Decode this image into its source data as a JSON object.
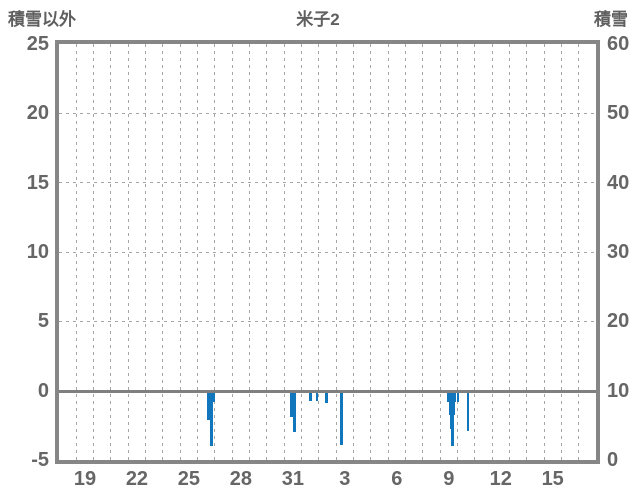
{
  "header": {
    "left_axis_title": "積雪以外",
    "title": "米子2",
    "right_axis_title": "積雪"
  },
  "colors": {
    "bar": "#1276bd",
    "frame": "#868686",
    "grid": "#a6a6a6",
    "zero_line": "#7f7f7f",
    "text": "#666666"
  },
  "chart_data": {
    "type": "bar",
    "title": "米子2",
    "left_axis": {
      "label": "積雪以外",
      "ticks": [
        25,
        20,
        15,
        10,
        5,
        0,
        "-5"
      ],
      "tick_values": [
        25,
        20,
        15,
        10,
        5,
        0,
        -5
      ],
      "range": [
        -5,
        25
      ]
    },
    "right_axis": {
      "label": "積雪",
      "ticks": [
        60,
        50,
        40,
        30,
        20,
        10,
        0
      ],
      "tick_values": [
        60,
        50,
        40,
        30,
        20,
        10,
        0
      ],
      "range": [
        0,
        60
      ]
    },
    "x_axis": {
      "tick_labels": [
        "19",
        "22",
        "25",
        "28",
        "31",
        "3",
        "6",
        "9",
        "12",
        "15"
      ],
      "tick_day_index": [
        1,
        4,
        7,
        10,
        13,
        16,
        19,
        22,
        25,
        28
      ],
      "days_total": 31,
      "first_day_label": "18",
      "grid": "daily dashed vertical lines; dashed horizontal lines at 5-unit steps; solid line at 0"
    },
    "hgrid_values": [
      20,
      15,
      10,
      5
    ],
    "zero_value": 0,
    "bars_note": "bars hang downward from the 0 line of the left axis; x is in days from the left plot edge (day 18 = 0), w is width in days, v is value on the left axis (estimated from pixels)",
    "bars": [
      {
        "x": 8.55,
        "w": 0.46,
        "v": -0.8
      },
      {
        "x": 8.55,
        "w": 0.34,
        "v": -2.1
      },
      {
        "x": 8.73,
        "w": 0.17,
        "v": -4.0
      },
      {
        "x": 13.35,
        "w": 0.34,
        "v": -1.9
      },
      {
        "x": 13.53,
        "w": 0.17,
        "v": -3.0
      },
      {
        "x": 14.44,
        "w": 0.17,
        "v": -0.75
      },
      {
        "x": 14.81,
        "w": 0.17,
        "v": -0.75
      },
      {
        "x": 15.38,
        "w": 0.17,
        "v": -0.9
      },
      {
        "x": 16.24,
        "w": 0.17,
        "v": -3.9
      },
      {
        "x": 22.38,
        "w": 0.51,
        "v": -0.85
      },
      {
        "x": 22.5,
        "w": 0.34,
        "v": -1.75
      },
      {
        "x": 22.58,
        "w": 0.23,
        "v": -2.8
      },
      {
        "x": 22.64,
        "w": 0.14,
        "v": -4.0
      },
      {
        "x": 22.95,
        "w": 0.17,
        "v": -0.8
      },
      {
        "x": 23.53,
        "w": 0.14,
        "v": -2.9
      }
    ]
  }
}
